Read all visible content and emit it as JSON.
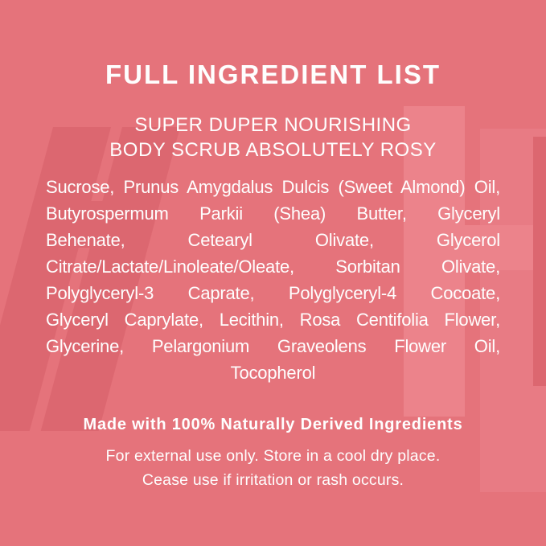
{
  "label": {
    "title": "FULL INGREDIENT LIST",
    "subtitle_lines": [
      "SUPER DUPER NOURISHING",
      "BODY SCRUB ABSOLUTELY ROSY"
    ],
    "ingredients_lines": [
      "Sucrose, Prunus Amygdalus Dulcis (Sweet Almond) Oil,",
      "Butyrospermum Parkii (Shea) Butter, Glyceryl",
      "Behenate, Cetearyl Olivate, Glycerol",
      "Citrate/Lactate/Linoleate/Oleate, Sorbitan Olivate,",
      "Polyglyceryl-3 Caprate, Polyglyceryl-4 Cocoate,",
      "Glyceryl Caprylate, Lecithin, Rosa Centifolia Flower,",
      "Glycerine, Pelargonium Graveolens Flower Oil,",
      "Tocopherol"
    ],
    "claim": "Made with 100% Naturally Derived Ingredients",
    "usage_lines": [
      "For external use only. Store in a cool dry place.",
      "Cease use if irritation or rash occurs."
    ]
  },
  "colors": {
    "background": "#E5737B",
    "wm_dark": "#DC6770",
    "wm_light": "#EC838B",
    "wm_medium": "#E87B84",
    "text": "#FEFEFE"
  }
}
